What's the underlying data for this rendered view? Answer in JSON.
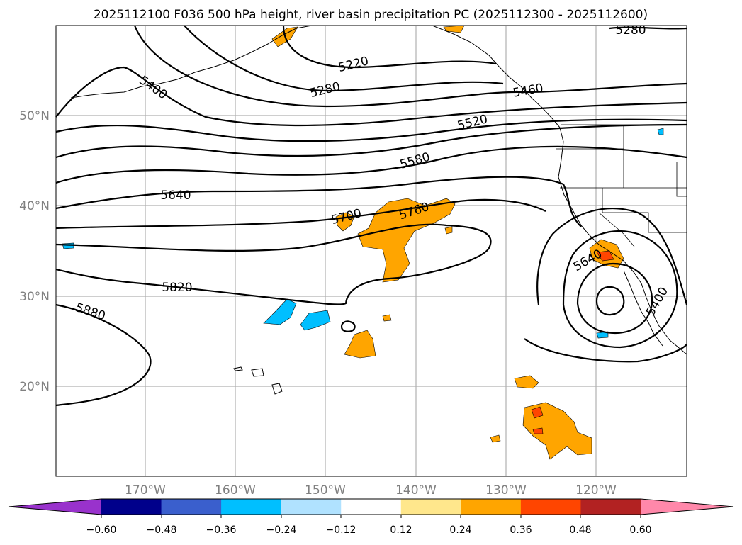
{
  "title": "2025112100 F036 500 hPa height, river basin precipitation PC (2025112300 - 2025112600)",
  "lat_labels": [
    "50°N",
    "40°N",
    "30°N",
    "20°N"
  ],
  "lon_labels": [
    "170°W",
    "160°W",
    "150°W",
    "140°W",
    "130°W",
    "120°W"
  ],
  "contour_labels": [
    "5220",
    "5280",
    "5280",
    "5400",
    "5460",
    "5520",
    "5580",
    "5640",
    "5700",
    "5760",
    "5820",
    "5880",
    "5640",
    "5400"
  ],
  "colorbar": {
    "ticks": [
      "−0.60",
      "−0.48",
      "−0.36",
      "−0.24",
      "−0.12",
      "0.12",
      "0.24",
      "0.36",
      "0.48",
      "0.60"
    ],
    "colors": [
      "#9932CC",
      "#00008B",
      "#3A5FCD",
      "#00BFFF",
      "#B0E2FF",
      "#FFFFFF",
      "#FFE78C",
      "#FFA500",
      "#FF4500",
      "#B22222",
      "#FF88AA"
    ]
  }
}
